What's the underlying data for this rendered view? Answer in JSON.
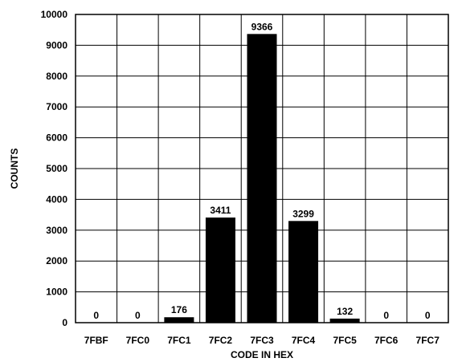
{
  "chart_data": {
    "type": "bar",
    "categories": [
      "7FBF",
      "7FC0",
      "7FC1",
      "7FC2",
      "7FC3",
      "7FC4",
      "7FC5",
      "7FC6",
      "7FC7"
    ],
    "values": [
      0,
      0,
      176,
      3411,
      9366,
      3299,
      132,
      0,
      0
    ],
    "data_labels": [
      "0",
      "0",
      "176",
      "3411",
      "9366",
      "3299",
      "132",
      "0",
      "0"
    ],
    "xlabel": "CODE IN HEX",
    "ylabel": "COUNTS",
    "ylim": [
      0,
      10000
    ],
    "yticks": [
      0,
      1000,
      2000,
      3000,
      4000,
      5000,
      6000,
      7000,
      8000,
      9000,
      10000
    ],
    "ytick_labels": [
      "0",
      "1000",
      "2000",
      "3000",
      "4000",
      "5000",
      "6000",
      "7000",
      "8000",
      "9000",
      "10000"
    ],
    "grid": true,
    "bar_color": "#000000"
  }
}
